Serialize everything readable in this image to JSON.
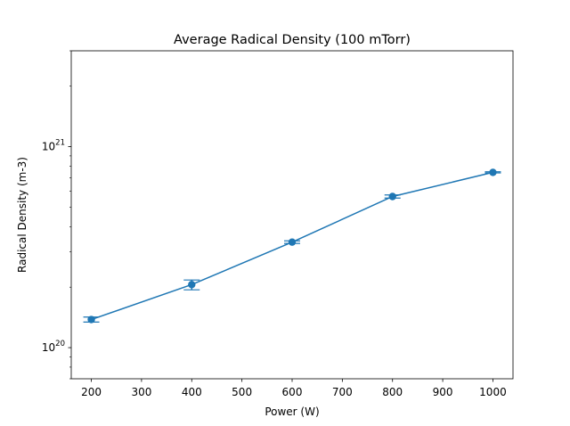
{
  "chart_data": {
    "type": "line",
    "title": "Average Radical Density (100 mTorr)",
    "xlabel": "Power (W)",
    "ylabel": "Radical Density (m-3)",
    "yscale": "log",
    "xlim": [
      160,
      1040
    ],
    "ylim": [
      7e+19,
      3e+21
    ],
    "x_ticks": [
      200,
      300,
      400,
      500,
      600,
      700,
      800,
      900,
      1000
    ],
    "x_tick_labels": [
      "200",
      "300",
      "400",
      "500",
      "600",
      "700",
      "800",
      "900",
      "1000"
    ],
    "y_ticks": [
      {
        "value": 1e+20,
        "base": "10",
        "exp": "20"
      },
      {
        "value": 1e+21,
        "base": "10",
        "exp": "21"
      }
    ],
    "grid": false,
    "series": [
      {
        "color": "#1f77b4",
        "marker": "circle",
        "error_bars": true,
        "x": [
          200,
          400,
          600,
          800,
          1000
        ],
        "y": [
          1.38e+20,
          2.06e+20,
          3.35e+20,
          5.65e+20,
          7.45e+20
        ],
        "y_err_low": [
          1.34e+20,
          1.94e+20,
          3.3e+20,
          5.55e+20,
          7.4e+20
        ],
        "y_err_high": [
          1.42e+20,
          2.17e+20,
          3.4e+20,
          5.75e+20,
          7.5e+20
        ]
      }
    ]
  }
}
